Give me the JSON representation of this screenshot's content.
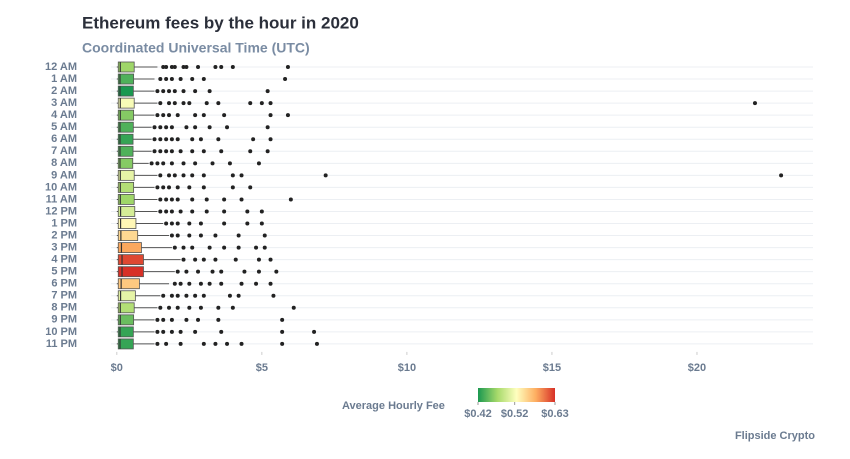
{
  "chart_data": {
    "type": "boxplot",
    "title": "Ethereum fees by the hour in 2020",
    "subtitle": "Coordinated Universal Time (UTC)",
    "xlim": [
      -0.2,
      24
    ],
    "xticks": [
      {
        "value": 0,
        "label": "$0"
      },
      {
        "value": 5,
        "label": "$5"
      },
      {
        "value": 10,
        "label": "$10"
      },
      {
        "value": 15,
        "label": "$15"
      },
      {
        "value": 20,
        "label": "$20"
      }
    ],
    "grid": true,
    "legend": {
      "title": "Average Hourly Fee",
      "position": "bottom",
      "colorscale": [
        "#1a9850",
        "#a6d96a",
        "#ffffbf",
        "#fdae61",
        "#d73027"
      ],
      "clim": [
        0.42,
        0.63
      ],
      "ticks": [
        {
          "value": 0.42,
          "label": "$0.42"
        },
        {
          "value": 0.52,
          "label": "$0.52"
        },
        {
          "value": 0.63,
          "label": "$0.63"
        }
      ]
    },
    "source": "Flipside Crypto",
    "boxes": [
      {
        "name": "12 AM",
        "whisker_low": 0,
        "q1": 0.05,
        "median": 0.12,
        "q3": 0.6,
        "whisker_high": 1.4,
        "avg_fee": 0.47,
        "outliers": [
          1.6,
          1.7,
          1.9,
          2.0,
          2.3,
          2.4,
          2.8,
          3.4,
          3.6,
          4.0,
          5.9
        ]
      },
      {
        "name": "1 AM",
        "whisker_low": 0,
        "q1": 0.05,
        "median": 0.11,
        "q3": 0.58,
        "whisker_high": 1.3,
        "avg_fee": 0.44,
        "outliers": [
          1.5,
          1.7,
          1.9,
          2.2,
          2.6,
          3.0,
          5.8
        ]
      },
      {
        "name": "2 AM",
        "whisker_low": 0,
        "q1": 0.05,
        "median": 0.11,
        "q3": 0.57,
        "whisker_high": 1.3,
        "avg_fee": 0.42,
        "outliers": [
          1.4,
          1.6,
          1.8,
          2.0,
          2.3,
          2.7,
          3.2,
          5.2
        ]
      },
      {
        "name": "3 AM",
        "whisker_low": 0,
        "q1": 0.05,
        "median": 0.12,
        "q3": 0.6,
        "whisker_high": 1.4,
        "avg_fee": 0.52,
        "outliers": [
          1.5,
          1.8,
          2.0,
          2.3,
          2.5,
          3.1,
          3.5,
          4.6,
          5.0,
          5.3,
          22.0
        ]
      },
      {
        "name": "4 AM",
        "whisker_low": 0,
        "q1": 0.05,
        "median": 0.12,
        "q3": 0.58,
        "whisker_high": 1.3,
        "avg_fee": 0.46,
        "outliers": [
          1.4,
          1.6,
          1.8,
          2.1,
          2.7,
          3.0,
          3.7,
          5.3,
          5.9
        ]
      },
      {
        "name": "5 AM",
        "whisker_low": 0,
        "q1": 0.05,
        "median": 0.11,
        "q3": 0.57,
        "whisker_high": 1.2,
        "avg_fee": 0.44,
        "outliers": [
          1.3,
          1.5,
          1.7,
          1.9,
          2.4,
          2.7,
          3.2,
          3.8,
          5.2
        ]
      },
      {
        "name": "6 AM",
        "whisker_low": 0,
        "q1": 0.05,
        "median": 0.11,
        "q3": 0.56,
        "whisker_high": 1.2,
        "avg_fee": 0.43,
        "outliers": [
          1.3,
          1.5,
          1.7,
          1.9,
          2.1,
          2.6,
          2.9,
          3.5,
          4.7,
          5.3
        ]
      },
      {
        "name": "7 AM",
        "whisker_low": 0,
        "q1": 0.05,
        "median": 0.11,
        "q3": 0.56,
        "whisker_high": 1.2,
        "avg_fee": 0.44,
        "outliers": [
          1.3,
          1.5,
          1.7,
          1.9,
          2.2,
          2.6,
          3.0,
          3.6,
          4.6,
          5.2
        ]
      },
      {
        "name": "8 AM",
        "whisker_low": 0,
        "q1": 0.05,
        "median": 0.11,
        "q3": 0.55,
        "whisker_high": 1.1,
        "avg_fee": 0.46,
        "outliers": [
          1.2,
          1.4,
          1.6,
          1.9,
          2.3,
          2.7,
          3.3,
          3.9,
          4.9
        ]
      },
      {
        "name": "9 AM",
        "whisker_low": 0,
        "q1": 0.05,
        "median": 0.12,
        "q3": 0.6,
        "whisker_high": 1.4,
        "avg_fee": 0.51,
        "outliers": [
          1.5,
          1.8,
          2.0,
          2.3,
          2.6,
          3.0,
          4.0,
          4.3,
          7.2,
          22.9
        ]
      },
      {
        "name": "10 AM",
        "whisker_low": 0,
        "q1": 0.05,
        "median": 0.12,
        "q3": 0.58,
        "whisker_high": 1.3,
        "avg_fee": 0.48,
        "outliers": [
          1.4,
          1.6,
          1.8,
          2.1,
          2.5,
          3.0,
          4.0,
          4.6
        ]
      },
      {
        "name": "11 AM",
        "whisker_low": 0,
        "q1": 0.05,
        "median": 0.12,
        "q3": 0.6,
        "whisker_high": 1.4,
        "avg_fee": 0.47,
        "outliers": [
          1.5,
          1.7,
          1.9,
          2.1,
          2.6,
          3.1,
          3.7,
          4.3,
          6.0
        ]
      },
      {
        "name": "12 PM",
        "whisker_low": 0,
        "q1": 0.05,
        "median": 0.13,
        "q3": 0.62,
        "whisker_high": 1.4,
        "avg_fee": 0.5,
        "outliers": [
          1.5,
          1.7,
          1.9,
          2.2,
          2.6,
          3.1,
          3.7,
          4.5,
          5.0
        ]
      },
      {
        "name": "1 PM",
        "whisker_low": 0,
        "q1": 0.05,
        "median": 0.13,
        "q3": 0.66,
        "whisker_high": 1.6,
        "avg_fee": 0.53,
        "outliers": [
          1.7,
          1.9,
          2.1,
          2.5,
          2.9,
          3.7,
          4.5,
          5.0
        ]
      },
      {
        "name": "2 PM",
        "whisker_low": 0,
        "q1": 0.05,
        "median": 0.14,
        "q3": 0.72,
        "whisker_high": 1.8,
        "avg_fee": 0.55,
        "outliers": [
          1.9,
          2.1,
          2.5,
          2.9,
          3.4,
          4.2,
          5.1
        ]
      },
      {
        "name": "3 PM",
        "whisker_low": 0,
        "q1": 0.05,
        "median": 0.16,
        "q3": 0.85,
        "whisker_high": 1.9,
        "avg_fee": 0.58,
        "outliers": [
          2.0,
          2.3,
          2.6,
          3.2,
          3.7,
          4.2,
          4.8,
          5.1
        ]
      },
      {
        "name": "4 PM",
        "whisker_low": 0,
        "q1": 0.05,
        "median": 0.18,
        "q3": 0.92,
        "whisker_high": 2.2,
        "avg_fee": 0.62,
        "outliers": [
          2.3,
          2.7,
          3.0,
          3.4,
          4.1,
          4.9,
          5.3
        ]
      },
      {
        "name": "5 PM",
        "whisker_low": 0,
        "q1": 0.05,
        "median": 0.18,
        "q3": 0.92,
        "whisker_high": 2.0,
        "avg_fee": 0.63,
        "outliers": [
          2.1,
          2.4,
          2.8,
          3.3,
          3.6,
          4.4,
          4.9,
          5.5
        ]
      },
      {
        "name": "6 PM",
        "whisker_low": 0,
        "q1": 0.05,
        "median": 0.15,
        "q3": 0.78,
        "whisker_high": 1.8,
        "avg_fee": 0.56,
        "outliers": [
          2.0,
          2.2,
          2.5,
          2.9,
          3.2,
          3.6,
          4.3,
          4.8,
          5.3
        ]
      },
      {
        "name": "7 PM",
        "whisker_low": 0,
        "q1": 0.05,
        "median": 0.13,
        "q3": 0.64,
        "whisker_high": 1.5,
        "avg_fee": 0.51,
        "outliers": [
          1.6,
          1.9,
          2.1,
          2.4,
          2.7,
          3.0,
          3.9,
          4.2,
          5.4
        ]
      },
      {
        "name": "8 PM",
        "whisker_low": 0,
        "q1": 0.05,
        "median": 0.12,
        "q3": 0.6,
        "whisker_high": 1.4,
        "avg_fee": 0.48,
        "outliers": [
          1.5,
          1.8,
          2.1,
          2.5,
          2.9,
          3.5,
          4.0,
          6.1
        ]
      },
      {
        "name": "9 PM",
        "whisker_low": 0,
        "q1": 0.05,
        "median": 0.12,
        "q3": 0.58,
        "whisker_high": 1.3,
        "avg_fee": 0.45,
        "outliers": [
          1.4,
          1.6,
          1.9,
          2.4,
          2.8,
          3.5,
          5.7
        ]
      },
      {
        "name": "10 PM",
        "whisker_low": 0,
        "q1": 0.05,
        "median": 0.11,
        "q3": 0.57,
        "whisker_high": 1.3,
        "avg_fee": 0.43,
        "outliers": [
          1.4,
          1.6,
          1.9,
          2.2,
          2.7,
          3.6,
          5.7,
          6.8
        ]
      },
      {
        "name": "11 PM",
        "whisker_low": 0,
        "q1": 0.05,
        "median": 0.11,
        "q3": 0.57,
        "whisker_high": 1.3,
        "avg_fee": 0.43,
        "outliers": [
          1.4,
          1.7,
          2.2,
          3.0,
          3.4,
          3.8,
          4.3,
          5.7,
          6.9
        ]
      }
    ]
  }
}
